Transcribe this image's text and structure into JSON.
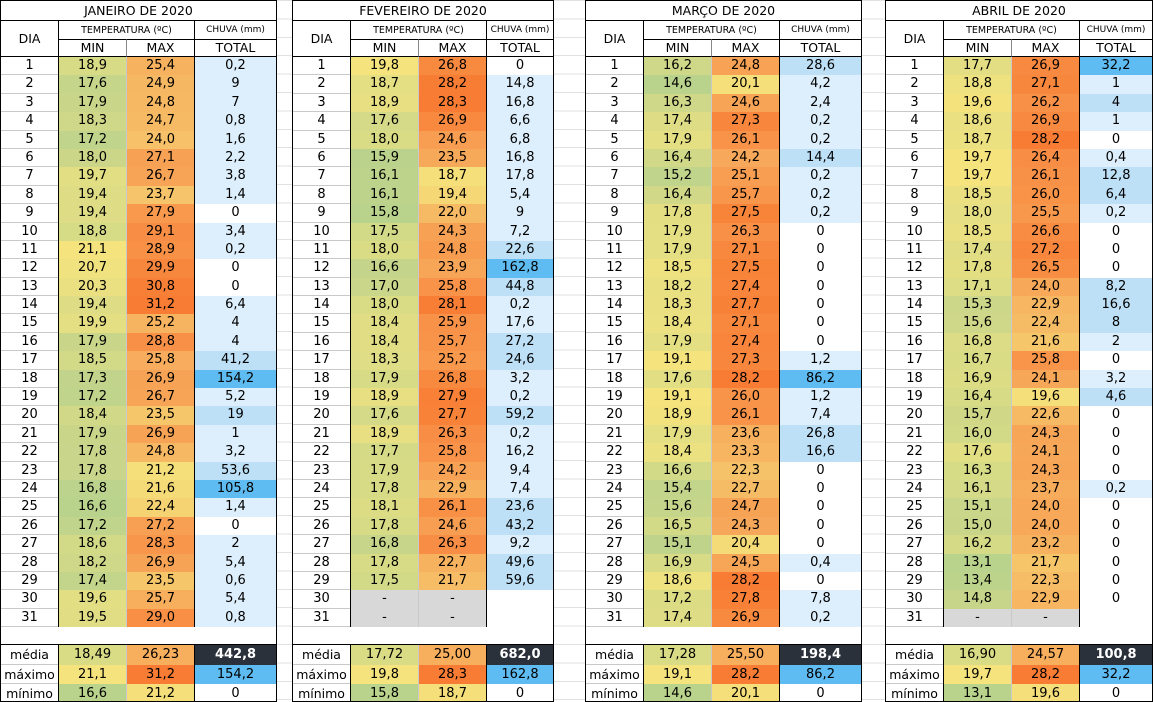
{
  "labels": {
    "dia": "DIA",
    "temperatura": "TEMPERATURA (ºC)",
    "chuva": "CHUVA (mm)",
    "min": "MIN",
    "max": "MAX",
    "total": "TOTAL",
    "media": "média",
    "maximo": "máximo",
    "minimo": "mínimo"
  },
  "colors": {
    "rain_light": "#ddeffc",
    "rain_mid": "#bde0f7",
    "rain_strong": "#5fbcf2",
    "total_dark": "#2b313a",
    "na_gray": "#d8d8d8",
    "min_palette": [
      "#b9d28c",
      "#c7d58a",
      "#d7db86",
      "#e6df83",
      "#f5e37d"
    ],
    "max_palette": [
      "#f5df7a",
      "#f6c46a",
      "#f7a95a",
      "#f89248",
      "#f87c33"
    ]
  },
  "months": [
    {
      "title": "JANEIRO DE 2020",
      "left": 0,
      "width": 277,
      "days": [
        [
          "1",
          "18,9",
          "25,4",
          "0,2"
        ],
        [
          "2",
          "17,6",
          "24,9",
          "9"
        ],
        [
          "3",
          "17,9",
          "24,8",
          "7"
        ],
        [
          "4",
          "18,3",
          "24,7",
          "0,8"
        ],
        [
          "5",
          "17,2",
          "24,0",
          "1,6"
        ],
        [
          "6",
          "18,0",
          "27,1",
          "2,2"
        ],
        [
          "7",
          "19,7",
          "26,7",
          "3,8"
        ],
        [
          "8",
          "19,4",
          "23,7",
          "1,4"
        ],
        [
          "9",
          "19,4",
          "27,9",
          "0"
        ],
        [
          "10",
          "18,8",
          "29,1",
          "3,4"
        ],
        [
          "11",
          "21,1",
          "28,9",
          "0,2"
        ],
        [
          "12",
          "20,7",
          "29,9",
          "0"
        ],
        [
          "13",
          "20,3",
          "30,8",
          "0"
        ],
        [
          "14",
          "19,4",
          "31,2",
          "6,4"
        ],
        [
          "15",
          "19,9",
          "25,2",
          "4"
        ],
        [
          "16",
          "17,9",
          "28,8",
          "4"
        ],
        [
          "17",
          "18,5",
          "25,8",
          "41,2"
        ],
        [
          "18",
          "17,3",
          "26,9",
          "154,2"
        ],
        [
          "19",
          "17,2",
          "26,7",
          "5,2"
        ],
        [
          "20",
          "18,4",
          "23,5",
          "19"
        ],
        [
          "21",
          "17,9",
          "26,9",
          "1"
        ],
        [
          "22",
          "17,8",
          "24,8",
          "3,2"
        ],
        [
          "23",
          "17,8",
          "21,2",
          "53,6"
        ],
        [
          "24",
          "16,8",
          "21,6",
          "105,8"
        ],
        [
          "25",
          "16,6",
          "22,4",
          "1,4"
        ],
        [
          "26",
          "17,2",
          "27,2",
          "0"
        ],
        [
          "27",
          "18,6",
          "28,3",
          "2"
        ],
        [
          "28",
          "18,2",
          "26,9",
          "5,4"
        ],
        [
          "29",
          "17,4",
          "23,5",
          "0,6"
        ],
        [
          "30",
          "19,6",
          "25,7",
          "5,4"
        ],
        [
          "31",
          "19,5",
          "29,0",
          "0,8"
        ]
      ],
      "media": [
        "18,49",
        "26,23",
        "442,8"
      ],
      "maximo": [
        "21,1",
        "31,2",
        "154,2"
      ],
      "minimo": [
        "16,6",
        "21,2",
        "0"
      ]
    },
    {
      "title": "FEVEREIRO DE 2020",
      "left": 292,
      "width": 262,
      "days": [
        [
          "1",
          "19,8",
          "26,8",
          "0"
        ],
        [
          "2",
          "18,7",
          "28,2",
          "14,8"
        ],
        [
          "3",
          "18,9",
          "28,3",
          "16,8"
        ],
        [
          "4",
          "17,6",
          "26,9",
          "6,6"
        ],
        [
          "5",
          "18,0",
          "24,6",
          "6,8"
        ],
        [
          "6",
          "15,9",
          "23,5",
          "16,8"
        ],
        [
          "7",
          "16,1",
          "18,7",
          "17,8"
        ],
        [
          "8",
          "16,1",
          "19,4",
          "5,4"
        ],
        [
          "9",
          "15,8",
          "22,0",
          "9"
        ],
        [
          "10",
          "17,5",
          "24,3",
          "7,2"
        ],
        [
          "11",
          "18,0",
          "24,8",
          "22,6"
        ],
        [
          "12",
          "16,6",
          "23,9",
          "162,8"
        ],
        [
          "13",
          "17,0",
          "25,8",
          "44,8"
        ],
        [
          "14",
          "18,0",
          "28,1",
          "0,2"
        ],
        [
          "15",
          "18,4",
          "25,9",
          "17,6"
        ],
        [
          "16",
          "18,4",
          "25,7",
          "27,2"
        ],
        [
          "17",
          "18,3",
          "25,2",
          "24,6"
        ],
        [
          "18",
          "17,9",
          "26,8",
          "3,2"
        ],
        [
          "19",
          "18,9",
          "27,9",
          "0,2"
        ],
        [
          "20",
          "17,6",
          "27,7",
          "59,2"
        ],
        [
          "21",
          "18,9",
          "26,3",
          "0,2"
        ],
        [
          "22",
          "17,7",
          "25,8",
          "16,2"
        ],
        [
          "23",
          "17,9",
          "24,2",
          "9,4"
        ],
        [
          "24",
          "17,8",
          "22,9",
          "7,4"
        ],
        [
          "25",
          "18,1",
          "26,1",
          "23,6"
        ],
        [
          "26",
          "17,8",
          "24,6",
          "43,2"
        ],
        [
          "27",
          "16,8",
          "26,3",
          "9,2"
        ],
        [
          "28",
          "17,8",
          "22,7",
          "49,6"
        ],
        [
          "29",
          "17,5",
          "21,7",
          "59,6"
        ],
        [
          "30",
          "-",
          "-",
          ""
        ],
        [
          "31",
          "-",
          "-",
          ""
        ]
      ],
      "media": [
        "17,72",
        "25,00",
        "682,0"
      ],
      "maximo": [
        "19,8",
        "28,3",
        "162,8"
      ],
      "minimo": [
        "15,8",
        "18,7",
        "0"
      ]
    },
    {
      "title": "MARÇO DE 2020",
      "left": 585,
      "width": 277,
      "days": [
        [
          "1",
          "16,2",
          "24,8",
          "28,6"
        ],
        [
          "2",
          "14,6",
          "20,1",
          "4,2"
        ],
        [
          "3",
          "16,3",
          "24,6",
          "2,4"
        ],
        [
          "4",
          "17,4",
          "27,3",
          "0,2"
        ],
        [
          "5",
          "17,9",
          "26,1",
          "0,2"
        ],
        [
          "6",
          "16,4",
          "24,2",
          "14,4"
        ],
        [
          "7",
          "15,2",
          "25,1",
          "0,2"
        ],
        [
          "8",
          "16,4",
          "25,7",
          "0,2"
        ],
        [
          "9",
          "17,8",
          "27,5",
          "0,2"
        ],
        [
          "10",
          "17,9",
          "26,3",
          "0"
        ],
        [
          "11",
          "17,9",
          "27,1",
          "0"
        ],
        [
          "12",
          "18,5",
          "27,5",
          "0"
        ],
        [
          "13",
          "18,2",
          "27,4",
          "0"
        ],
        [
          "14",
          "18,3",
          "27,7",
          "0"
        ],
        [
          "15",
          "18,4",
          "27,1",
          "0"
        ],
        [
          "16",
          "17,9",
          "27,4",
          "0"
        ],
        [
          "17",
          "19,1",
          "27,3",
          "1,2"
        ],
        [
          "18",
          "17,6",
          "28,2",
          "86,2"
        ],
        [
          "19",
          "19,1",
          "26,0",
          "1,2"
        ],
        [
          "20",
          "18,9",
          "26,1",
          "7,4"
        ],
        [
          "21",
          "17,9",
          "23,6",
          "26,8"
        ],
        [
          "22",
          "18,4",
          "23,3",
          "16,6"
        ],
        [
          "23",
          "16,6",
          "22,3",
          "0"
        ],
        [
          "24",
          "15,4",
          "22,7",
          "0"
        ],
        [
          "25",
          "15,6",
          "24,7",
          "0"
        ],
        [
          "26",
          "16,5",
          "24,3",
          "0"
        ],
        [
          "27",
          "15,1",
          "20,4",
          "0"
        ],
        [
          "28",
          "16,9",
          "24,5",
          "0,4"
        ],
        [
          "29",
          "18,6",
          "28,2",
          "0"
        ],
        [
          "30",
          "17,2",
          "27,8",
          "7,8"
        ],
        [
          "31",
          "17,4",
          "26,9",
          "0,2"
        ]
      ],
      "media": [
        "17,28",
        "25,50",
        "198,4"
      ],
      "maximo": [
        "19,1",
        "28,2",
        "86,2"
      ],
      "minimo": [
        "14,6",
        "20,1",
        "0"
      ]
    },
    {
      "title": "ABRIL DE 2020",
      "left": 885,
      "width": 268,
      "days": [
        [
          "1",
          "17,7",
          "26,9",
          "32,2"
        ],
        [
          "2",
          "18,8",
          "27,1",
          "1"
        ],
        [
          "3",
          "19,6",
          "26,2",
          "4"
        ],
        [
          "4",
          "18,6",
          "26,9",
          "1"
        ],
        [
          "5",
          "18,7",
          "28,2",
          "0"
        ],
        [
          "6",
          "19,7",
          "26,4",
          "0,4"
        ],
        [
          "7",
          "19,7",
          "26,1",
          "12,8"
        ],
        [
          "8",
          "18,5",
          "26,0",
          "6,4"
        ],
        [
          "9",
          "18,0",
          "25,5",
          "0,2"
        ],
        [
          "10",
          "18,5",
          "26,6",
          "0"
        ],
        [
          "11",
          "17,4",
          "27,2",
          "0"
        ],
        [
          "12",
          "17,8",
          "26,5",
          "0"
        ],
        [
          "13",
          "17,1",
          "24,0",
          "8,2"
        ],
        [
          "14",
          "15,3",
          "22,9",
          "16,6"
        ],
        [
          "15",
          "15,6",
          "22,4",
          "8"
        ],
        [
          "16",
          "16,8",
          "21,6",
          "2"
        ],
        [
          "17",
          "16,7",
          "25,8",
          "0"
        ],
        [
          "18",
          "16,9",
          "24,1",
          "3,2"
        ],
        [
          "19",
          "16,4",
          "19,6",
          "4,6"
        ],
        [
          "20",
          "15,7",
          "22,6",
          "0"
        ],
        [
          "21",
          "16,0",
          "24,3",
          "0"
        ],
        [
          "22",
          "17,6",
          "24,1",
          "0"
        ],
        [
          "23",
          "16,3",
          "24,3",
          "0"
        ],
        [
          "24",
          "16,1",
          "23,7",
          "0,2"
        ],
        [
          "25",
          "15,1",
          "24,0",
          "0"
        ],
        [
          "26",
          "15,0",
          "24,0",
          "0"
        ],
        [
          "27",
          "16,2",
          "23,2",
          "0"
        ],
        [
          "28",
          "13,1",
          "21,7",
          "0"
        ],
        [
          "29",
          "13,4",
          "22,3",
          "0"
        ],
        [
          "30",
          "14,8",
          "22,9",
          "0"
        ],
        [
          "31",
          "-",
          "-",
          ""
        ]
      ],
      "media": [
        "16,90",
        "24,57",
        "100,8"
      ],
      "maximo": [
        "19,7",
        "28,2",
        "32,2"
      ],
      "minimo": [
        "13,1",
        "19,6",
        "0"
      ]
    }
  ]
}
